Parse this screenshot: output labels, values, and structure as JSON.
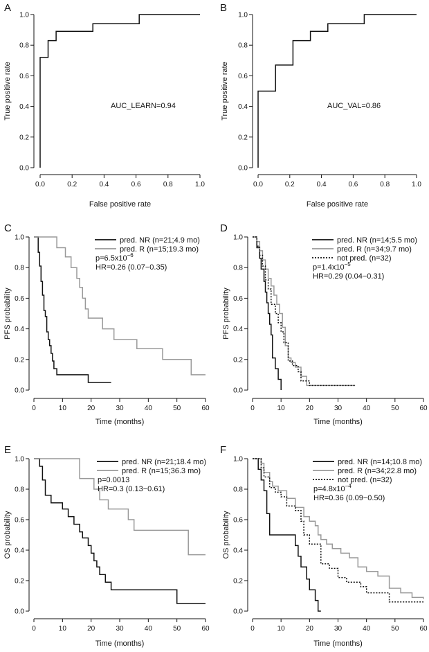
{
  "chart_data": [
    {
      "panel": "A",
      "type": "line",
      "xlabel": "False positive rate",
      "ylabel": "True positive rate",
      "xlim": [
        0,
        1
      ],
      "ylim": [
        0,
        1
      ],
      "xticks": [
        0.0,
        0.2,
        0.4,
        0.6,
        0.8,
        1.0
      ],
      "yticks": [
        0.0,
        0.2,
        0.4,
        0.6,
        0.8,
        1.0
      ],
      "xtick_labels": [
        "0.0",
        "0.2",
        "0.4",
        "0.6",
        "0.8",
        "1.0"
      ],
      "ytick_labels": [
        "0.0",
        "0.2",
        "0.4",
        "0.6",
        "0.8",
        "1.0"
      ],
      "annotations": [
        "AUC_LEARN=0.94"
      ],
      "series": [
        {
          "color": "#111111",
          "dash": "solid",
          "step": true,
          "x": [
            0,
            0,
            0.05,
            0.05,
            0.1,
            0.1,
            0.33,
            0.33,
            0.62,
            0.62,
            1.0
          ],
          "y": [
            0,
            0.72,
            0.72,
            0.83,
            0.83,
            0.89,
            0.89,
            0.94,
            0.94,
            1.0,
            1.0
          ]
        }
      ]
    },
    {
      "panel": "B",
      "type": "line",
      "xlabel": "False positive rate",
      "ylabel": "True positive rate",
      "xlim": [
        0,
        1
      ],
      "ylim": [
        0,
        1
      ],
      "xticks": [
        0.0,
        0.2,
        0.4,
        0.6,
        0.8,
        1.0
      ],
      "yticks": [
        0.0,
        0.2,
        0.4,
        0.6,
        0.8,
        1.0
      ],
      "xtick_labels": [
        "0.0",
        "0.2",
        "0.4",
        "0.6",
        "0.8",
        "1.0"
      ],
      "ytick_labels": [
        "0.0",
        "0.2",
        "0.4",
        "0.6",
        "0.8",
        "1.0"
      ],
      "annotations": [
        "AUC_VAL=0.86"
      ],
      "series": [
        {
          "color": "#111111",
          "dash": "solid",
          "step": true,
          "x": [
            0,
            0,
            0.11,
            0.11,
            0.22,
            0.22,
            0.33,
            0.33,
            0.44,
            0.44,
            0.67,
            0.67,
            1.0
          ],
          "y": [
            0,
            0.5,
            0.5,
            0.67,
            0.67,
            0.83,
            0.83,
            0.89,
            0.89,
            0.94,
            0.94,
            1.0,
            1.0
          ]
        }
      ]
    },
    {
      "panel": "C",
      "type": "line",
      "xlabel": "Time (months)",
      "ylabel": "PFS probability",
      "xlim": [
        0,
        60
      ],
      "ylim": [
        0,
        1
      ],
      "xticks": [
        0,
        10,
        20,
        30,
        40,
        50,
        60
      ],
      "yticks": [
        0.0,
        0.2,
        0.4,
        0.6,
        0.8,
        1.0
      ],
      "xtick_labels": [
        "0",
        "10",
        "20",
        "30",
        "40",
        "50",
        "60"
      ],
      "ytick_labels": [
        "0.0",
        "0.2",
        "0.4",
        "0.6",
        "0.8",
        "1.0"
      ],
      "annotations": [
        {
          "parts": [
            {
              "t": "p=6.5x10"
            },
            {
              "t": "−6",
              "sup": true
            }
          ]
        },
        {
          "parts": [
            {
              "t": "HR=0.26 (0.07−0.35)"
            }
          ]
        }
      ],
      "series": [
        {
          "name": "pred. NR (n=21;4.9 mo)",
          "color": "#111111",
          "dash": "solid",
          "step": true,
          "x": [
            0,
            1.5,
            2,
            2.5,
            3,
            3.5,
            4,
            4.5,
            5,
            5.5,
            6,
            6.5,
            7,
            8,
            9,
            10,
            19,
            27
          ],
          "y": [
            1.0,
            0.9,
            0.81,
            0.71,
            0.62,
            0.52,
            0.48,
            0.38,
            0.33,
            0.29,
            0.24,
            0.19,
            0.14,
            0.1,
            0.1,
            0.1,
            0.05,
            0.05
          ]
        },
        {
          "name": "pred. R (n=15;19.3 mo)",
          "color": "#999999",
          "dash": "solid",
          "step": true,
          "x": [
            0,
            8,
            11,
            13,
            15,
            16,
            17,
            18,
            19,
            24,
            28,
            36,
            45,
            55,
            60
          ],
          "y": [
            1.0,
            0.93,
            0.87,
            0.8,
            0.73,
            0.67,
            0.6,
            0.53,
            0.47,
            0.4,
            0.33,
            0.27,
            0.2,
            0.1,
            0.1
          ]
        }
      ]
    },
    {
      "panel": "D",
      "type": "line",
      "xlabel": "Time (months)",
      "ylabel": "PFS probability",
      "xlim": [
        0,
        60
      ],
      "ylim": [
        0,
        1
      ],
      "xticks": [
        0,
        10,
        20,
        30,
        40,
        50,
        60
      ],
      "yticks": [
        0.0,
        0.2,
        0.4,
        0.6,
        0.8,
        1.0
      ],
      "xtick_labels": [
        "0",
        "10",
        "20",
        "30",
        "40",
        "50",
        "60"
      ],
      "ytick_labels": [
        "0.0",
        "0.2",
        "0.4",
        "0.6",
        "0.8",
        "1.0"
      ],
      "annotations": [
        {
          "parts": [
            {
              "t": "p=1.4x10"
            },
            {
              "t": "−5",
              "sup": true
            }
          ]
        },
        {
          "parts": [
            {
              "t": "HR=0.29 (0.04−0.31)"
            }
          ]
        }
      ],
      "series": [
        {
          "name": "pred. NR (n=14;5.5 mo)",
          "color": "#111111",
          "dash": "solid",
          "step": true,
          "x": [
            0,
            1.5,
            2.5,
            3,
            4,
            4.5,
            5,
            5.5,
            6,
            6.5,
            7,
            8,
            9,
            10
          ],
          "y": [
            1.0,
            0.93,
            0.86,
            0.79,
            0.71,
            0.64,
            0.57,
            0.5,
            0.43,
            0.36,
            0.21,
            0.14,
            0.07,
            0.0
          ]
        },
        {
          "name": "pred. R (n=34;9.7 mo)",
          "color": "#999999",
          "dash": "solid",
          "step": true,
          "x": [
            0,
            1.5,
            2.5,
            3.5,
            4.5,
            5.5,
            6.5,
            7.5,
            8.5,
            9.5,
            10.5,
            11.5,
            12.5,
            13.5,
            15,
            17,
            19,
            22,
            36
          ],
          "y": [
            1.0,
            0.97,
            0.91,
            0.85,
            0.79,
            0.73,
            0.68,
            0.62,
            0.56,
            0.5,
            0.41,
            0.29,
            0.21,
            0.18,
            0.15,
            0.09,
            0.03,
            0.03,
            0.03
          ]
        },
        {
          "name": "not pred. (n=32)",
          "color": "#111111",
          "dash": "dotted",
          "step": true,
          "x": [
            0,
            1.5,
            2.5,
            3.5,
            4.5,
            5.5,
            6.5,
            8,
            9,
            10,
            11,
            12.5,
            14,
            16,
            17,
            20,
            36
          ],
          "y": [
            1.0,
            0.94,
            0.88,
            0.81,
            0.72,
            0.66,
            0.56,
            0.5,
            0.44,
            0.38,
            0.31,
            0.19,
            0.16,
            0.12,
            0.06,
            0.03,
            0.03
          ]
        }
      ]
    },
    {
      "panel": "E",
      "type": "line",
      "xlabel": "Time (months)",
      "ylabel": "OS probability",
      "xlim": [
        0,
        60
      ],
      "ylim": [
        0,
        1
      ],
      "xticks": [
        0,
        10,
        20,
        30,
        40,
        50,
        60
      ],
      "yticks": [
        0.0,
        0.2,
        0.4,
        0.6,
        0.8,
        1.0
      ],
      "xtick_labels": [
        "0",
        "10",
        "20",
        "30",
        "40",
        "50",
        "60"
      ],
      "ytick_labels": [
        "0.0",
        "0.2",
        "0.4",
        "0.6",
        "0.8",
        "1.0"
      ],
      "annotations": [
        {
          "parts": [
            {
              "t": "p=0.0013"
            }
          ]
        },
        {
          "parts": [
            {
              "t": "HR=0.3 (0.13−0.61)"
            }
          ]
        }
      ],
      "series": [
        {
          "name": "pred. NR (n=21;18.4 mo)",
          "color": "#111111",
          "dash": "solid",
          "step": true,
          "x": [
            0,
            2,
            3,
            4,
            6,
            10,
            12,
            14,
            16,
            17,
            19,
            20,
            21,
            22,
            23,
            25,
            27,
            33,
            50,
            60
          ],
          "y": [
            1.0,
            0.95,
            0.86,
            0.76,
            0.71,
            0.67,
            0.62,
            0.57,
            0.52,
            0.48,
            0.43,
            0.38,
            0.33,
            0.29,
            0.24,
            0.19,
            0.14,
            0.14,
            0.05,
            0.05
          ]
        },
        {
          "name": "pred. R (n=15;36.3 mo)",
          "color": "#999999",
          "dash": "solid",
          "step": true,
          "x": [
            0,
            16,
            21,
            23,
            26,
            33,
            35,
            54,
            60
          ],
          "y": [
            1.0,
            0.87,
            0.8,
            0.73,
            0.67,
            0.6,
            0.53,
            0.37,
            0.37
          ]
        }
      ]
    },
    {
      "panel": "F",
      "type": "line",
      "xlabel": "Time (months)",
      "ylabel": "OS probability",
      "xlim": [
        0,
        60
      ],
      "ylim": [
        0,
        1
      ],
      "xticks": [
        0,
        10,
        20,
        30,
        40,
        50,
        60
      ],
      "yticks": [
        0.0,
        0.2,
        0.4,
        0.6,
        0.8,
        1.0
      ],
      "xtick_labels": [
        "0",
        "10",
        "20",
        "30",
        "40",
        "50",
        "60"
      ],
      "ytick_labels": [
        "0.0",
        "0.2",
        "0.4",
        "0.6",
        "0.8",
        "1.0"
      ],
      "annotations": [
        {
          "parts": [
            {
              "t": "p=4.8x10"
            },
            {
              "t": "−4",
              "sup": true
            }
          ]
        },
        {
          "parts": [
            {
              "t": "HR=0.36 (0.09−0.50)"
            }
          ]
        }
      ],
      "series": [
        {
          "name": "pred. NR (n=14;10.8 mo)",
          "color": "#111111",
          "dash": "solid",
          "step": true,
          "x": [
            0,
            2,
            3,
            4,
            5,
            6,
            11,
            15,
            16,
            17,
            19,
            20,
            22,
            23,
            24
          ],
          "y": [
            1.0,
            0.93,
            0.86,
            0.79,
            0.64,
            0.5,
            0.5,
            0.43,
            0.36,
            0.29,
            0.21,
            0.14,
            0.07,
            0.0,
            0.0
          ]
        },
        {
          "name": "pred. R (n=34;22.8 mo)",
          "color": "#999999",
          "dash": "solid",
          "step": true,
          "x": [
            0,
            3,
            4,
            6,
            7,
            9,
            12,
            15,
            18,
            20,
            22,
            23,
            24,
            26,
            28,
            31,
            34,
            37,
            40,
            44,
            48,
            52,
            56,
            60
          ],
          "y": [
            1.0,
            0.97,
            0.91,
            0.85,
            0.82,
            0.79,
            0.74,
            0.68,
            0.62,
            0.59,
            0.56,
            0.5,
            0.47,
            0.44,
            0.41,
            0.38,
            0.35,
            0.29,
            0.26,
            0.23,
            0.15,
            0.12,
            0.09,
            0.08
          ]
        },
        {
          "name": "not pred. (n=32)",
          "color": "#111111",
          "dash": "dotted",
          "step": true,
          "x": [
            0,
            3,
            4,
            6,
            8,
            10,
            12,
            15,
            17,
            18,
            20,
            24,
            27,
            30,
            33,
            38,
            40,
            44,
            48,
            52,
            60
          ],
          "y": [
            1.0,
            0.94,
            0.88,
            0.81,
            0.78,
            0.75,
            0.69,
            0.66,
            0.59,
            0.5,
            0.44,
            0.31,
            0.28,
            0.22,
            0.19,
            0.16,
            0.12,
            0.12,
            0.06,
            0.06,
            0.06
          ]
        }
      ]
    }
  ]
}
